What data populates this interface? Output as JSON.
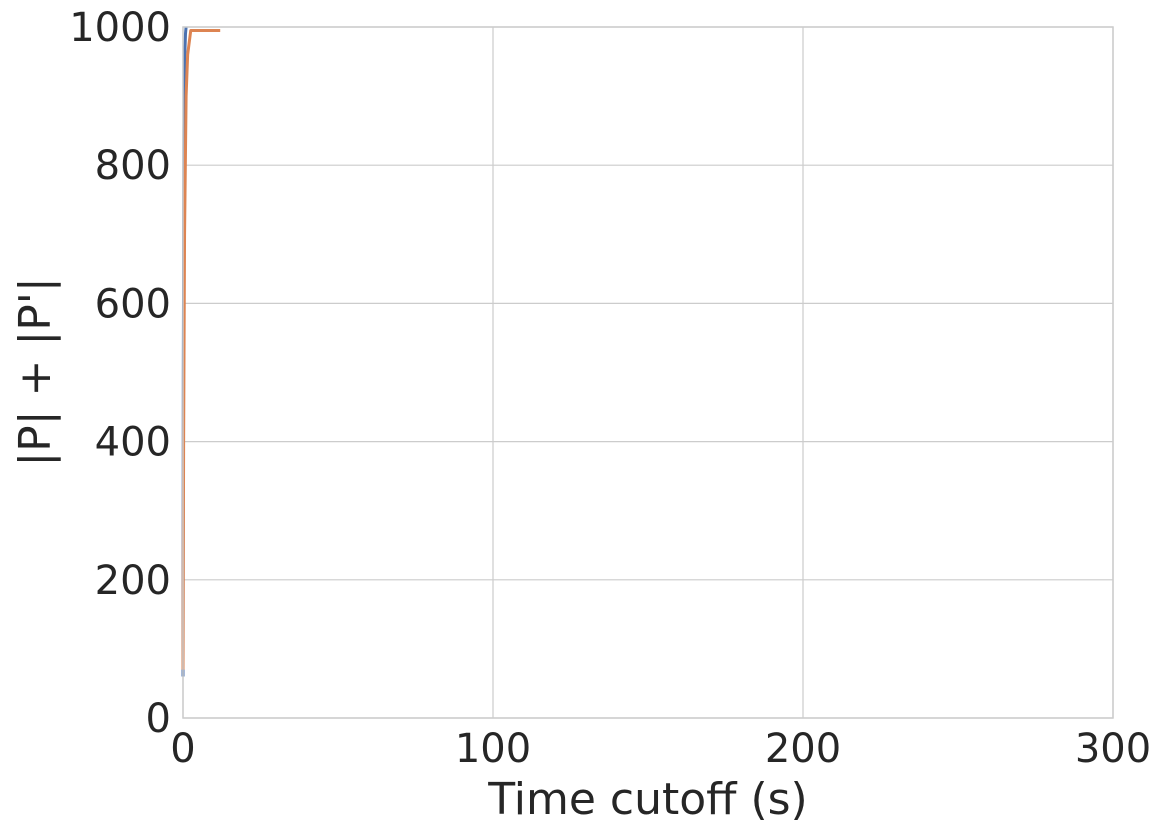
{
  "chart_data": {
    "type": "line",
    "title": "",
    "xlabel": "Time cutoff (s)",
    "ylabel": "|P| + |P'|",
    "xlim": [
      0,
      300
    ],
    "ylim": [
      0,
      1000
    ],
    "x_ticks": [
      0,
      100,
      200,
      300
    ],
    "y_ticks": [
      0,
      200,
      400,
      600,
      800,
      1000
    ],
    "x_tick_labels": [
      "0",
      "100",
      "200",
      "300"
    ],
    "y_tick_labels": [
      "0",
      "200",
      "400",
      "600",
      "800",
      "1000"
    ],
    "grid": true,
    "legend": "none",
    "series": [
      {
        "color": "#4c72b0",
        "x": [
          0.0,
          0.1,
          0.3,
          0.5,
          0.8,
          1.0
        ],
        "y": [
          60,
          500,
          850,
          950,
          990,
          1000
        ]
      },
      {
        "color": "#dd8452",
        "x": [
          0.0,
          0.2,
          0.5,
          1.0,
          1.5,
          2.5,
          12.0
        ],
        "y": [
          70,
          400,
          700,
          900,
          960,
          995,
          995
        ]
      }
    ]
  }
}
